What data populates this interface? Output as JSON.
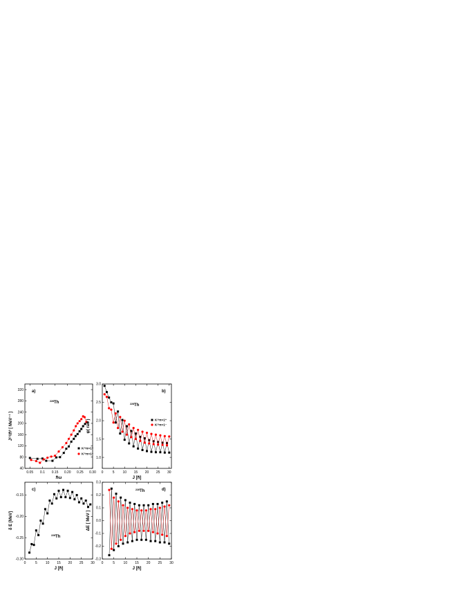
{
  "colors": {
    "black_series": "#000000",
    "red_series": "#ff0000",
    "line": "#000000",
    "red_line": "#cc0000"
  },
  "chart_data": [
    {
      "id": "a",
      "type": "scatter",
      "panel_label": "a)",
      "nucleus_mass": "228",
      "nucleus_symbol": "Th",
      "ylabel": "J⁽¹⁾/ℏ² [ MeV⁻¹ ]",
      "xlabel": "ℏω",
      "xlim": [
        0.03,
        0.3
      ],
      "ylim": [
        40,
        340
      ],
      "xticks": [
        0.05,
        0.1,
        0.15,
        0.2,
        0.25,
        0.3
      ],
      "xtick_labels": [
        "0.05",
        "0.1",
        "0.15",
        "0.20",
        "0.25",
        "0.30"
      ],
      "yticks": [
        40,
        80,
        120,
        160,
        200,
        240,
        280,
        320
      ],
      "ytick_labels": [
        "40",
        "80",
        "120",
        "160",
        "200",
        "240",
        "280",
        "320"
      ],
      "legend_position": "right",
      "series": [
        {
          "name": "K^π=1⁺",
          "marker": "square",
          "color": "#000000",
          "x": [
            0.05,
            0.08,
            0.1,
            0.115,
            0.14,
            0.155,
            0.17,
            0.185,
            0.195,
            0.205,
            0.215,
            0.225,
            0.232,
            0.24,
            0.248,
            0.255,
            0.262,
            0.27,
            0.278
          ],
          "y": [
            77,
            74,
            75,
            67,
            67,
            79,
            80,
            95,
            110,
            118,
            135,
            145,
            155,
            162,
            172,
            180,
            190,
            198,
            204
          ]
        },
        {
          "name": "K^π=1⁻",
          "marker": "circle",
          "color": "#ff0000",
          "x": [
            0.055,
            0.075,
            0.09,
            0.105,
            0.12,
            0.135,
            0.15,
            0.165,
            0.18,
            0.195,
            0.205,
            0.215,
            0.225,
            0.233,
            0.24,
            0.248,
            0.255,
            0.262,
            0.268,
            0.275
          ],
          "y": [
            70,
            66,
            60,
            72,
            78,
            82,
            85,
            100,
            115,
            130,
            145,
            160,
            175,
            190,
            200,
            208,
            215,
            225,
            222,
            205
          ]
        }
      ]
    },
    {
      "id": "b",
      "type": "line",
      "panel_label": "b)",
      "nucleus_mass": "228",
      "nucleus_symbol": "Th",
      "ylabel": "φ( rad )",
      "xlabel": "J [ℏ]",
      "xlim": [
        0,
        31
      ],
      "ylim": [
        0.7,
        3.0
      ],
      "xticks": [
        0,
        5,
        10,
        15,
        20,
        25,
        30
      ],
      "xtick_labels": [
        "0",
        "5",
        "10",
        "15",
        "20",
        "25",
        "30"
      ],
      "yticks": [
        1.0,
        1.5,
        2.0,
        2.5,
        3.0
      ],
      "ytick_labels": [
        "1.0",
        "1.5",
        "2.0",
        "2.5",
        "3.0"
      ],
      "legend_position": "right",
      "series": [
        {
          "name": "K^π=1⁺",
          "marker": "square",
          "color": "#000000",
          "x": [
            1,
            2,
            3,
            4,
            5,
            6,
            7,
            8,
            9,
            10,
            11,
            12,
            13,
            14,
            15,
            16,
            17,
            18,
            19,
            20,
            21,
            22,
            23,
            24,
            25,
            26,
            27,
            28,
            29,
            30
          ],
          "y": [
            2.95,
            2.78,
            2.63,
            2.5,
            2.47,
            1.95,
            2.25,
            1.65,
            2.02,
            1.48,
            1.85,
            1.38,
            1.72,
            1.3,
            1.65,
            1.24,
            1.56,
            1.2,
            1.52,
            1.17,
            1.47,
            1.15,
            1.44,
            1.14,
            1.42,
            1.14,
            1.4,
            1.13,
            1.39,
            1.13
          ]
        },
        {
          "name": "K^π=1⁻",
          "marker": "circle",
          "color": "#ff0000",
          "x": [
            1,
            2,
            3,
            4,
            5,
            6,
            7,
            8,
            9,
            10,
            11,
            12,
            13,
            14,
            15,
            16,
            17,
            18,
            19,
            20,
            21,
            22,
            23,
            24,
            25,
            26,
            27,
            28,
            29,
            30
          ],
          "y": [
            2.72,
            2.65,
            2.34,
            2.3,
            1.95,
            2.2,
            1.8,
            2.1,
            1.7,
            2.0,
            1.62,
            1.9,
            1.55,
            1.8,
            1.5,
            1.75,
            1.45,
            1.7,
            1.4,
            1.67,
            1.38,
            1.64,
            1.36,
            1.62,
            1.35,
            1.6,
            1.34,
            1.58,
            1.33,
            1.57
          ]
        }
      ]
    },
    {
      "id": "c",
      "type": "line",
      "panel_label": "c)",
      "nucleus_mass": "228",
      "nucleus_symbol": "Th",
      "ylabel": "δ E [MeV]",
      "xlabel": "J [ℏ]",
      "xlim": [
        0,
        30
      ],
      "ylim": [
        -0.3,
        -0.12
      ],
      "xticks": [
        0,
        5,
        10,
        15,
        20,
        25,
        30
      ],
      "xtick_labels": [
        "0",
        "5",
        "10",
        "15",
        "20",
        "25",
        "30"
      ],
      "yticks": [
        -0.3,
        -0.25,
        -0.2,
        -0.15
      ],
      "ytick_labels": [
        "-0.30",
        "-0.25",
        "-0.20",
        "-0.15"
      ],
      "series": [
        {
          "name": "",
          "marker": "square",
          "color": "#000000",
          "x": [
            2,
            3,
            4,
            5,
            6,
            7,
            8,
            9,
            10,
            11,
            12,
            13,
            14,
            15,
            16,
            17,
            18,
            19,
            20,
            21,
            22,
            23,
            24,
            25,
            26,
            27,
            28,
            29
          ],
          "y": [
            -0.285,
            -0.265,
            -0.267,
            -0.233,
            -0.244,
            -0.21,
            -0.217,
            -0.183,
            -0.193,
            -0.163,
            -0.17,
            -0.148,
            -0.158,
            -0.14,
            -0.155,
            -0.138,
            -0.155,
            -0.14,
            -0.157,
            -0.143,
            -0.16,
            -0.15,
            -0.167,
            -0.158,
            -0.17,
            -0.163,
            -0.178,
            -0.172
          ]
        }
      ]
    },
    {
      "id": "d",
      "type": "line",
      "panel_label": "d)",
      "nucleus_mass": "228",
      "nucleus_symbol": "Th",
      "ylabel": "ΔE [ MeV ]",
      "xlabel": "J [ℏ]",
      "xlim": [
        0,
        30
      ],
      "ylim": [
        -0.3,
        0.3
      ],
      "xticks": [
        0,
        5,
        10,
        15,
        20,
        25,
        30
      ],
      "xtick_labels": [
        "0",
        "5",
        "10",
        "15",
        "20",
        "25",
        "30"
      ],
      "yticks": [
        -0.3,
        -0.2,
        -0.1,
        0.0,
        0.1,
        0.2,
        0.3
      ],
      "ytick_labels": [
        "-0.3",
        "-0.2",
        "-0.1",
        "0.0",
        "0.1",
        "0.2",
        "0.3"
      ],
      "series": [
        {
          "name": "",
          "marker": "square",
          "color": "#000000",
          "x": [
            3,
            4,
            5,
            6,
            7,
            8,
            9,
            10,
            11,
            12,
            13,
            14,
            15,
            16,
            17,
            18,
            19,
            20,
            21,
            22,
            23,
            24,
            25,
            26,
            27,
            28,
            29
          ],
          "y": [
            -0.27,
            0.25,
            -0.23,
            0.21,
            -0.2,
            0.18,
            -0.18,
            0.16,
            -0.17,
            0.14,
            -0.16,
            0.13,
            -0.15,
            0.12,
            -0.15,
            0.12,
            -0.15,
            0.12,
            -0.16,
            0.13,
            -0.16,
            0.13,
            -0.17,
            0.14,
            -0.17,
            0.15,
            -0.18
          ]
        },
        {
          "name": "",
          "marker": "circle",
          "color": "#ff0000",
          "x": [
            3,
            4,
            5,
            6,
            7,
            8,
            9,
            10,
            11,
            12,
            13,
            14,
            15,
            16,
            17,
            18,
            19,
            20,
            21,
            22,
            23,
            24,
            25,
            26,
            27,
            28,
            29
          ],
          "y": [
            0.24,
            -0.22,
            0.18,
            -0.18,
            0.15,
            -0.15,
            0.12,
            -0.12,
            0.1,
            -0.1,
            0.09,
            -0.09,
            0.08,
            -0.08,
            0.08,
            -0.08,
            0.08,
            -0.08,
            0.09,
            -0.09,
            0.09,
            -0.1,
            0.1,
            -0.11,
            0.11,
            -0.12,
            0.12
          ]
        }
      ]
    }
  ]
}
